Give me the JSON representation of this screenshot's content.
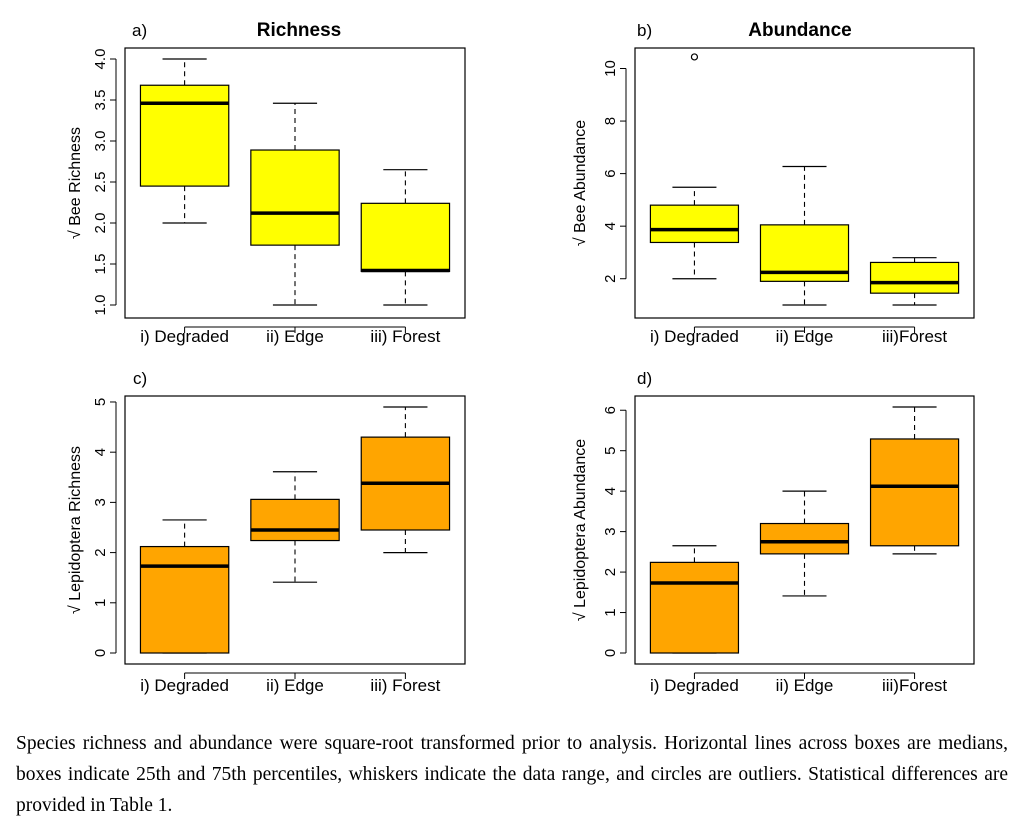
{
  "chart_data": [
    {
      "type": "boxplot",
      "panel": "a)",
      "title": "Richness",
      "ylabel": "√ Bee Richness",
      "ylim": [
        1.0,
        4.0
      ],
      "yticks": [
        "1.0",
        "1.5",
        "2.0",
        "2.5",
        "3.0",
        "3.5",
        "4.0"
      ],
      "tick_values": [
        1.0,
        1.5,
        2.0,
        2.5,
        3.0,
        3.5,
        4.0
      ],
      "fill": "#ffff00",
      "categories": [
        "i) Degraded",
        "ii) Edge",
        "iii) Forest"
      ],
      "boxes": [
        {
          "min": 2.0,
          "q1": 2.45,
          "median": 3.46,
          "q3": 3.68,
          "max": 4.0,
          "outliers": []
        },
        {
          "min": 1.0,
          "q1": 1.73,
          "median": 2.12,
          "q3": 2.89,
          "max": 3.46,
          "outliers": []
        },
        {
          "min": 1.0,
          "q1": 1.41,
          "median": 1.42,
          "q3": 2.24,
          "max": 2.65,
          "outliers": []
        }
      ]
    },
    {
      "type": "boxplot",
      "panel": "b)",
      "title": "Abundance",
      "ylabel": "√ Bee Abundance",
      "ylim": [
        1.0,
        10.4
      ],
      "yticks": [
        "2",
        "4",
        "6",
        "8",
        "10"
      ],
      "tick_values": [
        2,
        4,
        6,
        8,
        10
      ],
      "fill": "#ffff00",
      "categories": [
        "i) Degraded",
        "ii) Edge",
        "iii)Forest"
      ],
      "boxes": [
        {
          "min": 2.0,
          "q1": 3.38,
          "median": 3.87,
          "q3": 4.8,
          "max": 5.48,
          "outliers": [
            10.44
          ]
        },
        {
          "min": 1.0,
          "q1": 1.9,
          "median": 2.24,
          "q3": 4.05,
          "max": 6.27,
          "outliers": []
        },
        {
          "min": 1.0,
          "q1": 1.45,
          "median": 1.85,
          "q3": 2.62,
          "max": 2.8,
          "outliers": []
        }
      ]
    },
    {
      "type": "boxplot",
      "panel": "c)",
      "title": "",
      "ylabel": "√ Lepidoptera Richness",
      "ylim": [
        0,
        4.9
      ],
      "yticks": [
        "0",
        "1",
        "2",
        "3",
        "4",
        "5"
      ],
      "tick_values": [
        0,
        1,
        2,
        3,
        4,
        5
      ],
      "fill": "#ffa500",
      "categories": [
        "i) Degraded",
        "ii) Edge",
        "iii) Forest"
      ],
      "boxes": [
        {
          "min": 0,
          "q1": 0,
          "median": 1.73,
          "q3": 2.12,
          "max": 2.65,
          "outliers": []
        },
        {
          "min": 1.41,
          "q1": 2.24,
          "median": 2.45,
          "q3": 3.06,
          "max": 3.61,
          "outliers": []
        },
        {
          "min": 2.0,
          "q1": 2.45,
          "median": 3.38,
          "q3": 4.3,
          "max": 4.9,
          "outliers": []
        }
      ]
    },
    {
      "type": "boxplot",
      "panel": "d)",
      "title": "",
      "ylabel": "√ Lepidoptera Abundance",
      "ylim": [
        0,
        6.08
      ],
      "yticks": [
        "0",
        "1",
        "2",
        "3",
        "4",
        "5",
        "6"
      ],
      "tick_values": [
        0,
        1,
        2,
        3,
        4,
        5,
        6
      ],
      "fill": "#ffa500",
      "categories": [
        "i) Degraded",
        "ii) Edge",
        "iii)Forest"
      ],
      "boxes": [
        {
          "min": 0,
          "q1": 0,
          "median": 1.73,
          "q3": 2.24,
          "max": 2.65,
          "outliers": []
        },
        {
          "min": 1.41,
          "q1": 2.45,
          "median": 2.75,
          "q3": 3.2,
          "max": 4.0,
          "outliers": []
        },
        {
          "min": 2.45,
          "q1": 2.65,
          "median": 4.12,
          "q3": 5.29,
          "max": 6.08,
          "outliers": []
        }
      ]
    }
  ],
  "caption": "Species richness and abundance were square-root transformed prior to analysis. Horizontal lines across boxes are medians, boxes indicate 25th and 75th percentiles, whiskers indicate the data range, and circles are outliers. Statistical differences are provided in Table 1."
}
